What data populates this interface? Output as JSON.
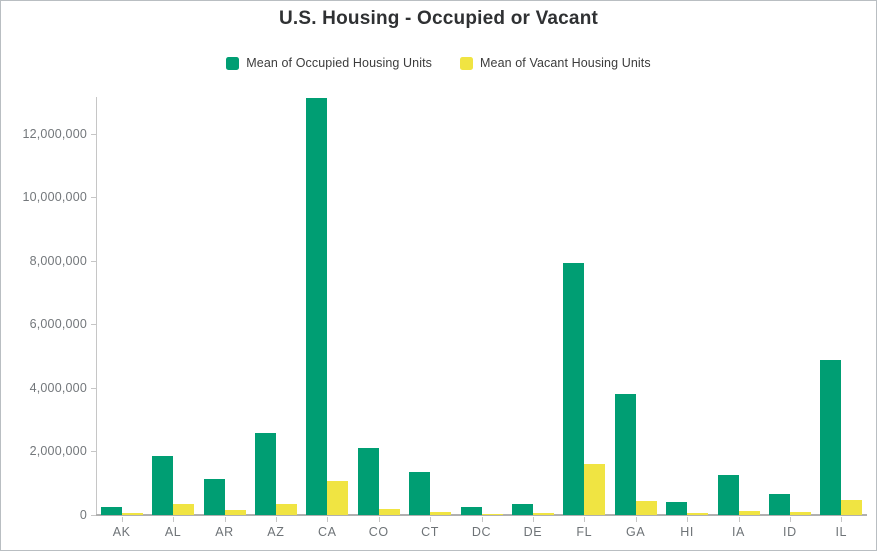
{
  "title": "U.S. Housing - Occupied or Vacant",
  "legend": [
    {
      "label": "Mean of Occupied Housing Units",
      "color": "#009E73"
    },
    {
      "label": "Mean of Vacant Housing Units",
      "color": "#F0E442"
    }
  ],
  "chart_data": {
    "type": "bar",
    "title": "U.S. Housing - Occupied or Vacant",
    "categories": [
      "AK",
      "AL",
      "AR",
      "AZ",
      "CA",
      "CO",
      "CT",
      "DC",
      "DE",
      "FL",
      "GA",
      "HI",
      "IA",
      "ID",
      "IL"
    ],
    "series": [
      {
        "name": "Mean of Occupied Housing Units",
        "color": "#009E73",
        "values": [
          240000,
          1860000,
          1120000,
          2590000,
          13120000,
          2100000,
          1360000,
          250000,
          360000,
          7930000,
          3800000,
          420000,
          1250000,
          650000,
          4870000
        ]
      },
      {
        "name": "Mean of Vacant Housing Units",
        "color": "#F0E442",
        "values": [
          50000,
          340000,
          170000,
          360000,
          1070000,
          190000,
          100000,
          30000,
          50000,
          1600000,
          450000,
          70000,
          120000,
          90000,
          460000
        ]
      }
    ],
    "xlabel": "",
    "ylabel": "",
    "ylim": [
      0,
      13400000
    ],
    "yticks": [
      0,
      2000000,
      4000000,
      6000000,
      8000000,
      10000000,
      12000000
    ],
    "grid": false,
    "legend_position": "top"
  }
}
